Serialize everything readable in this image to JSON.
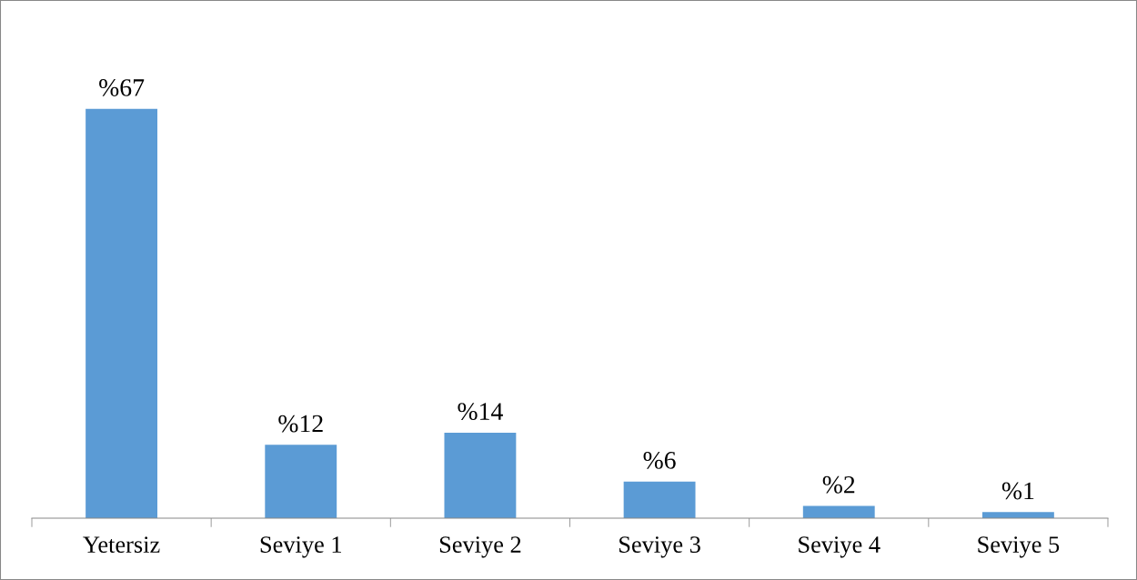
{
  "chart_data": {
    "type": "bar",
    "categories": [
      "Yetersiz",
      "Seviye 1",
      "Seviye 2",
      "Seviye 3",
      "Seviye 4",
      "Seviye 5"
    ],
    "values": [
      67,
      12,
      14,
      6,
      2,
      1
    ],
    "value_labels": [
      "%67",
      "%12",
      "%14",
      "%6",
      "%2",
      "%1"
    ],
    "color": "#5b9bd5",
    "grid": false,
    "legend": false
  }
}
